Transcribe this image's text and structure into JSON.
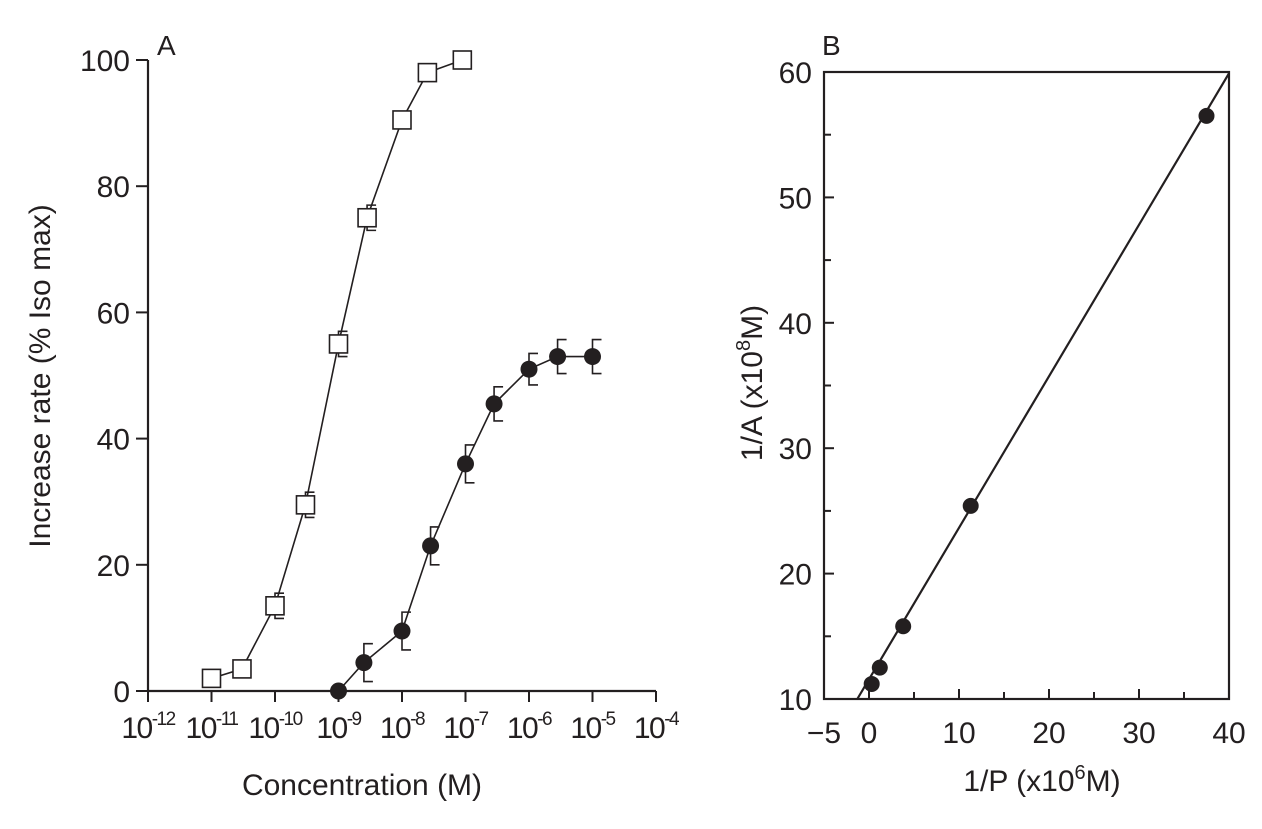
{
  "chart_data": [
    {
      "type": "line",
      "panel_label": "A",
      "xlabel": "Concentration (M)",
      "ylabel": "Increase rate (% Iso max)",
      "x_scale": "log",
      "xlim": [
        -12,
        -4
      ],
      "ylim": [
        0,
        100
      ],
      "x_ticks": [
        -12,
        -11,
        -10,
        -9,
        -8,
        -7,
        -6,
        -5,
        -4
      ],
      "x_tick_labels": [
        {
          "base": "10",
          "exp": "-12"
        },
        {
          "base": "10",
          "exp": "-11"
        },
        {
          "base": "10",
          "exp": "-10"
        },
        {
          "base": "10",
          "exp": "-9"
        },
        {
          "base": "10",
          "exp": "-8"
        },
        {
          "base": "10",
          "exp": "-7"
        },
        {
          "base": "10",
          "exp": "-6"
        },
        {
          "base": "10",
          "exp": "-5"
        },
        {
          "base": "10",
          "exp": "-4"
        }
      ],
      "x_tick_note": "tick labels are printed as 10^-12 … 10^-4; the minus sign is not printed on the exponent, so values are given as log10(M)",
      "y_ticks": [
        0,
        20,
        40,
        60,
        80,
        100
      ],
      "series": [
        {
          "marker": "open-square",
          "x": [
            -11.0,
            -10.52,
            -10.0,
            -9.52,
            -9.0,
            -8.55,
            -8.0,
            -7.6,
            -7.05
          ],
          "y": [
            2,
            3.5,
            13.5,
            29.5,
            55,
            75,
            90.5,
            98,
            100
          ],
          "err": [
            0,
            0,
            2,
            2,
            2,
            2,
            0,
            0,
            0
          ]
        },
        {
          "marker": "filled-circle",
          "x": [
            -9.0,
            -8.6,
            -8.0,
            -7.55,
            -7.0,
            -6.55,
            -6.0,
            -5.55,
            -5.0
          ],
          "y": [
            0,
            4.5,
            9.5,
            23,
            36,
            45.5,
            51,
            53,
            53
          ],
          "err": [
            0,
            3,
            3,
            3,
            3,
            2.7,
            2.5,
            2.7,
            2.7
          ]
        }
      ]
    },
    {
      "type": "scatter",
      "panel_label": "B",
      "xlabel": {
        "pre": "1/P (x10",
        "sup": "6",
        "post": "M)"
      },
      "ylabel": {
        "pre": "1/A (x10",
        "sup": "8",
        "post": "M)"
      },
      "xlim": [
        -5,
        40
      ],
      "ylim": [
        10,
        60
      ],
      "x_ticks": [
        -5,
        0,
        10,
        20,
        30,
        40
      ],
      "y_ticks": [
        10,
        20,
        30,
        40,
        50,
        60
      ],
      "points": {
        "x": [
          0.3,
          1.2,
          3.8,
          11.3,
          37.5
        ],
        "y": [
          11.2,
          12.5,
          15.8,
          25.4,
          56.5
        ]
      },
      "fit_line": {
        "x": [
          -1.3,
          40
        ],
        "y": [
          10,
          59.9
        ]
      }
    }
  ]
}
